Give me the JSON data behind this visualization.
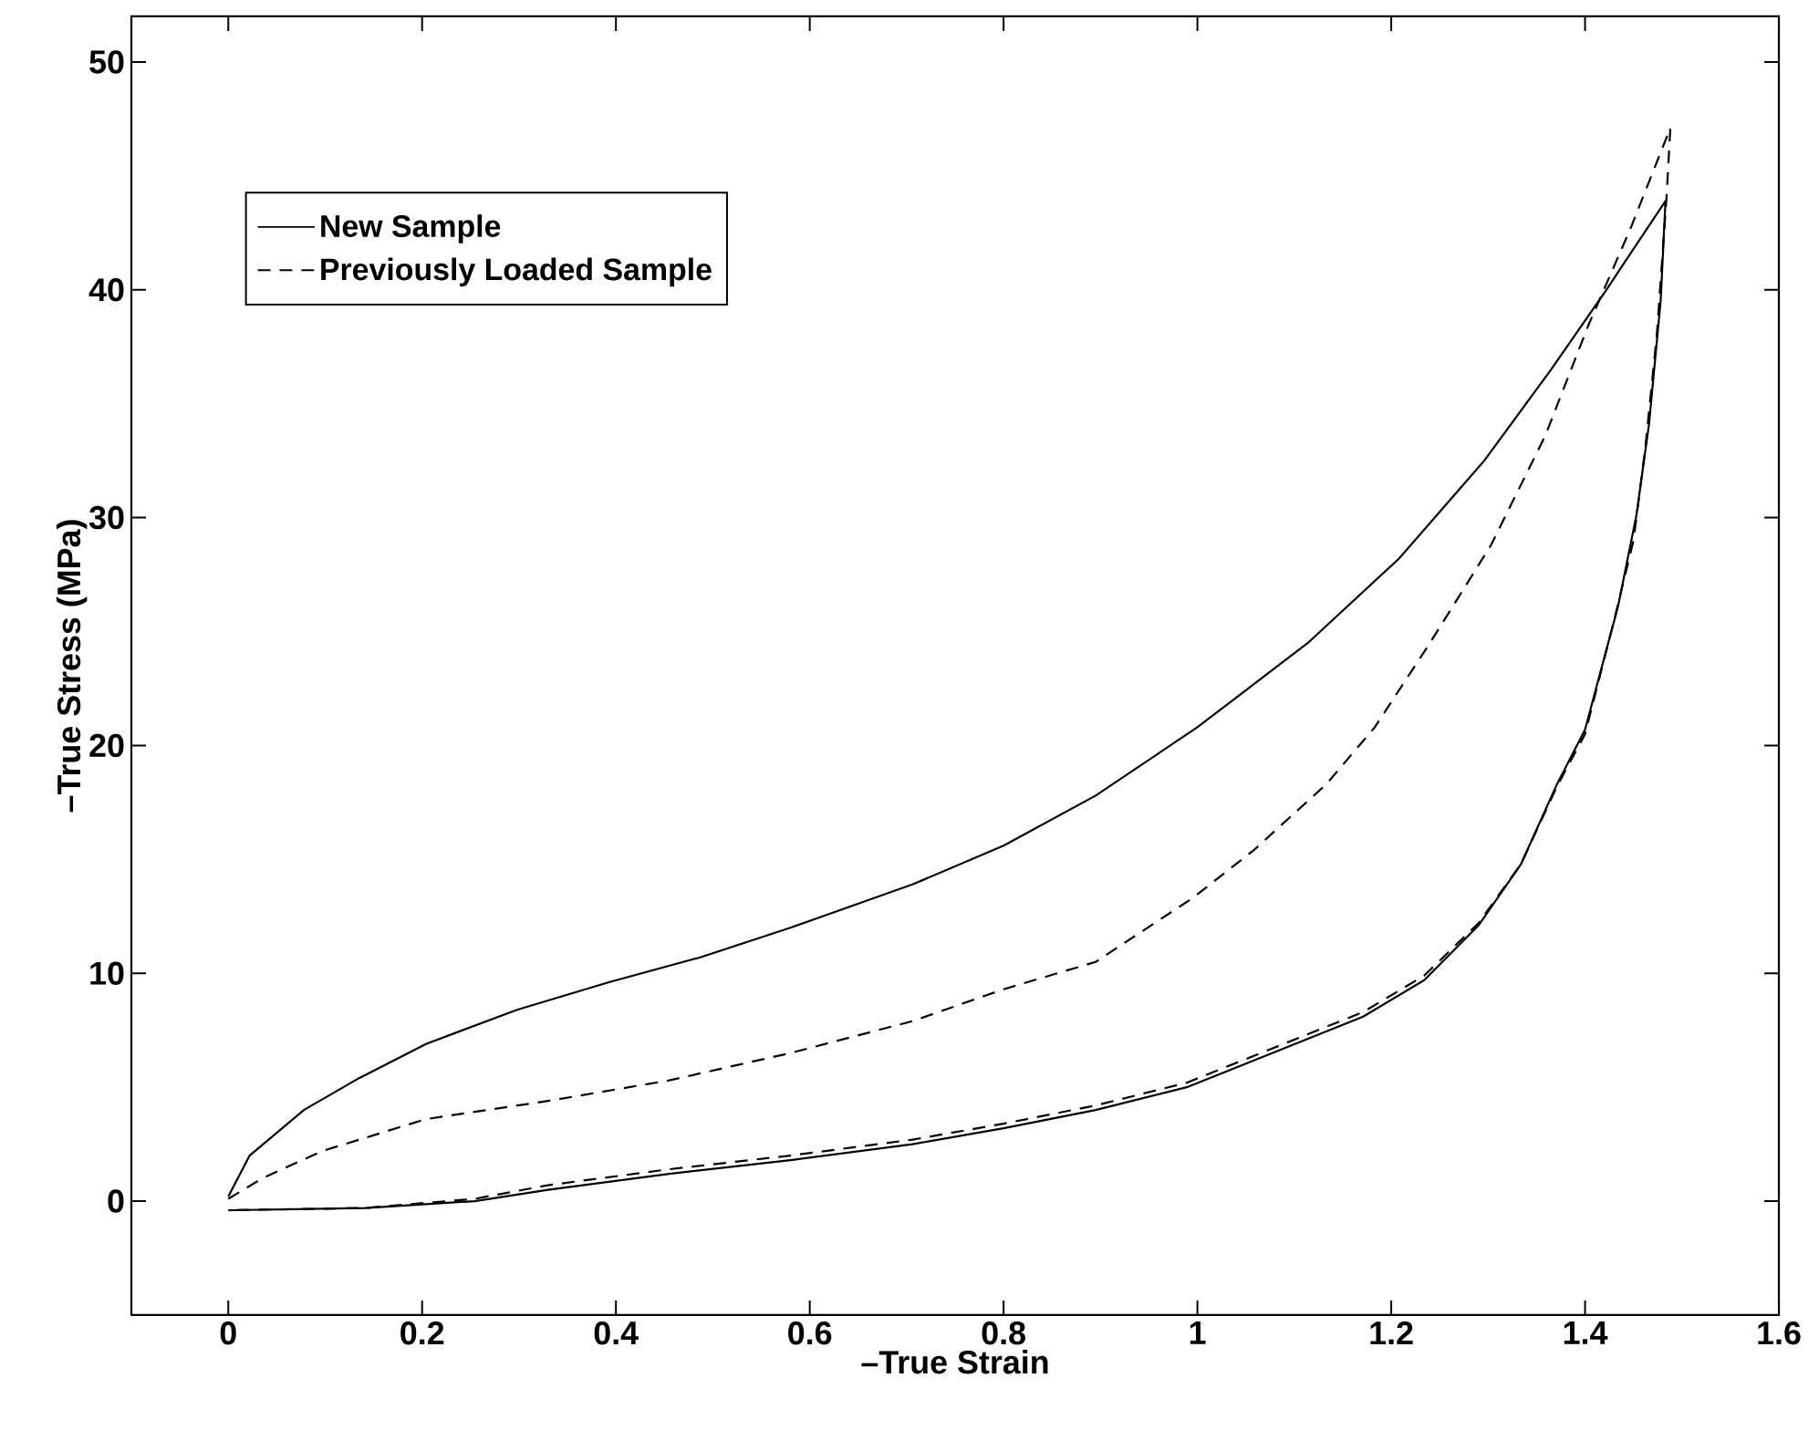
{
  "chart_data": {
    "type": "line",
    "xlabel": "–True Strain",
    "ylabel": "–True Stress (MPa)",
    "xlim": [
      -0.1,
      1.6
    ],
    "ylim": [
      -5,
      52
    ],
    "xticks": [
      0,
      0.2,
      0.4,
      0.6,
      0.8,
      1,
      1.2,
      1.4,
      1.6
    ],
    "yticks": [
      0,
      10,
      20,
      30,
      40,
      50
    ],
    "legend": "top left",
    "grid": false,
    "marker": "none",
    "series": [
      {
        "name": "New Sample",
        "color": "#000000",
        "line_style": "solid",
        "x": [
          0,
          0.022,
          0.078,
          0.135,
          0.204,
          0.298,
          0.392,
          0.487,
          0.58,
          0.706,
          0.8,
          0.895,
          1.0,
          1.114,
          1.208,
          1.296,
          1.365,
          1.422,
          1.483,
          1.478,
          1.466,
          1.453,
          1.434,
          1.4,
          1.371,
          1.334,
          1.29,
          1.234,
          1.171,
          1.083,
          0.989,
          0.895,
          0.8,
          0.706,
          0.58,
          0.455,
          0.33,
          0.254,
          0.141,
          0
        ],
        "values": [
          0.2,
          2.0,
          4.0,
          5.4,
          6.9,
          8.4,
          9.6,
          10.7,
          12.0,
          13.9,
          15.6,
          17.8,
          20.8,
          24.5,
          28.2,
          32.5,
          36.5,
          40.0,
          43.9,
          39.5,
          34.1,
          30.1,
          26.1,
          20.7,
          18.3,
          14.8,
          12.1,
          9.7,
          8.1,
          6.6,
          5.0,
          4.0,
          3.2,
          2.5,
          1.8,
          1.2,
          0.5,
          0.0,
          -0.3,
          -0.4
        ]
      },
      {
        "name": "Previously Loaded Sample",
        "color": "#000000",
        "line_style": "dashed",
        "x": [
          0,
          0.035,
          0.097,
          0.204,
          0.33,
          0.455,
          0.58,
          0.706,
          0.8,
          0.895,
          0.995,
          1.058,
          1.133,
          1.183,
          1.24,
          1.303,
          1.359,
          1.403,
          1.447,
          1.488,
          1.484,
          1.474,
          1.462,
          1.45,
          1.43,
          1.4,
          1.371,
          1.334,
          1.29,
          1.234,
          1.171,
          1.083,
          0.989,
          0.895,
          0.8,
          0.706,
          0.58,
          0.455,
          0.33,
          0.254,
          0.141,
          0
        ],
        "values": [
          0.1,
          1.0,
          2.2,
          3.6,
          4.4,
          5.3,
          6.5,
          7.9,
          9.3,
          10.5,
          13.3,
          15.4,
          18.3,
          20.8,
          24.5,
          28.8,
          33.6,
          38.4,
          42.7,
          47.1,
          44.0,
          38.0,
          33.0,
          29.0,
          25.5,
          20.5,
          18.2,
          14.8,
          12.2,
          9.9,
          8.3,
          6.8,
          5.2,
          4.2,
          3.4,
          2.7,
          2.0,
          1.4,
          0.7,
          0.1,
          -0.3,
          -0.4
        ]
      }
    ]
  }
}
